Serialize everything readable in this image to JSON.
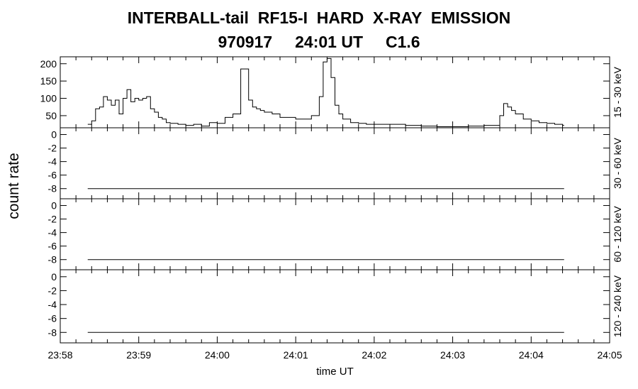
{
  "header": {
    "title": "INTERBALL-tail  RF15-I  HARD  X-RAY  EMISSION",
    "subtitle": "970917     24:01 UT     C1.6"
  },
  "chart_data": {
    "type": "line",
    "xlabel": "time UT",
    "ylabel": "count rate",
    "x_ticks": [
      "23:58",
      "23:59",
      "24:00",
      "24:01",
      "24:02",
      "24:03",
      "24:04",
      "24:05"
    ],
    "xlim": [
      0,
      7
    ],
    "x_unit": "minutes after 23:58",
    "panels": [
      {
        "channel": "15 - 30 keV",
        "ylim": [
          15,
          220
        ],
        "yticks": [
          "50",
          "100",
          "150",
          "200"
        ],
        "step": true,
        "x": [
          0.35,
          0.4,
          0.45,
          0.5,
          0.55,
          0.6,
          0.65,
          0.7,
          0.75,
          0.8,
          0.85,
          0.9,
          0.95,
          1.0,
          1.05,
          1.1,
          1.15,
          1.2,
          1.25,
          1.3,
          1.35,
          1.4,
          1.5,
          1.6,
          1.7,
          1.8,
          1.9,
          2.0,
          2.1,
          2.2,
          2.3,
          2.4,
          2.45,
          2.5,
          2.55,
          2.6,
          2.7,
          2.8,
          2.9,
          3.0,
          3.1,
          3.2,
          3.3,
          3.35,
          3.4,
          3.45,
          3.5,
          3.55,
          3.6,
          3.7,
          3.8,
          3.9,
          4.0,
          4.2,
          4.4,
          4.6,
          4.8,
          5.0,
          5.2,
          5.4,
          5.6,
          5.65,
          5.7,
          5.75,
          5.8,
          5.9,
          6.0,
          6.1,
          6.2,
          6.3,
          6.4,
          6.42
        ],
        "y": [
          25,
          35,
          70,
          75,
          105,
          95,
          80,
          95,
          55,
          100,
          125,
          90,
          100,
          95,
          100,
          105,
          70,
          60,
          45,
          40,
          30,
          28,
          25,
          22,
          25,
          20,
          30,
          28,
          45,
          55,
          185,
          95,
          75,
          70,
          65,
          60,
          55,
          45,
          45,
          40,
          40,
          50,
          105,
          205,
          215,
          160,
          80,
          55,
          40,
          30,
          28,
          25,
          25,
          25,
          22,
          20,
          18,
          18,
          20,
          22,
          50,
          85,
          75,
          65,
          55,
          40,
          35,
          30,
          28,
          25,
          22,
          22
        ]
      },
      {
        "channel": "30 - 60 keV",
        "ylim": [
          -9.5,
          1
        ],
        "yticks": [
          "-8",
          "-6",
          "-4",
          "-2",
          "0"
        ],
        "line_x": [
          0.35,
          6.42
        ],
        "line_value": -8
      },
      {
        "channel": "60 - 120 keV",
        "ylim": [
          -9.5,
          1
        ],
        "yticks": [
          "-8",
          "-6",
          "-4",
          "-2",
          "0"
        ],
        "line_x": [
          0.35,
          6.42
        ],
        "line_value": -8
      },
      {
        "channel": "120 - 240 keV",
        "ylim": [
          -9.5,
          1
        ],
        "yticks": [
          "-8",
          "-6",
          "-4",
          "-2",
          "0"
        ],
        "line_x": [
          0.35,
          6.42
        ],
        "line_value": -8
      }
    ]
  }
}
